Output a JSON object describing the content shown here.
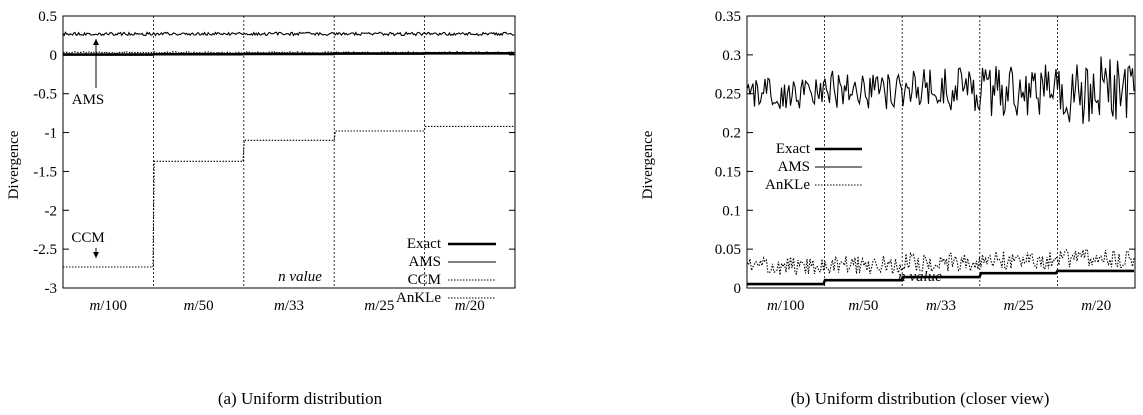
{
  "chart_data": [
    {
      "type": "line",
      "caption": "(a) Uniform distribution",
      "xlabel": "n value",
      "ylabel": "Divergence",
      "categories": [
        "m/100",
        "m/50",
        "m/33",
        "m/25",
        "m/20"
      ],
      "yticks": [
        "0.5",
        "0",
        "-0.5",
        "-1",
        "-1.5",
        "-2",
        "-2.5",
        "-3"
      ],
      "ylim": [
        -3,
        0.5
      ],
      "grid": "vertical dotted separators between categories",
      "legend_position": "bottom-right",
      "annotations": [
        "AMS",
        "CCM"
      ],
      "series": [
        {
          "name": "Exact",
          "style": "thick",
          "values": [
            0.003,
            0.008,
            0.012,
            0.016,
            0.02
          ]
        },
        {
          "name": "AMS",
          "style": "solid",
          "values": [
            0.27,
            0.27,
            0.27,
            0.27,
            0.27
          ],
          "noise": 0.02
        },
        {
          "name": "CCM",
          "style": "dotted",
          "values": [
            -2.73,
            -1.37,
            -1.1,
            -0.98,
            -0.92
          ]
        },
        {
          "name": "AnKLe",
          "style": "dotted",
          "values": [
            0.03,
            0.03,
            0.03,
            0.03,
            0.03
          ],
          "noise": 0.01
        }
      ]
    },
    {
      "type": "line",
      "caption": "(b) Uniform distribution (closer view)",
      "xlabel": "n value",
      "ylabel": "Divergence",
      "categories": [
        "m/100",
        "m/50",
        "m/33",
        "m/25",
        "m/20"
      ],
      "yticks": [
        "0.35",
        "0.3",
        "0.25",
        "0.2",
        "0.15",
        "0.1",
        "0.05",
        "0"
      ],
      "ylim": [
        0,
        0.35
      ],
      "grid": "vertical dotted separators between categories",
      "legend_position": "top-left",
      "series": [
        {
          "name": "Exact",
          "style": "thick",
          "values": [
            0.005,
            0.01,
            0.014,
            0.019,
            0.022
          ]
        },
        {
          "name": "AMS",
          "style": "solid",
          "values": [
            0.25,
            0.255,
            0.255,
            0.255,
            0.255
          ],
          "noise": [
            0.02,
            0.025,
            0.03,
            0.035,
            0.045
          ]
        },
        {
          "name": "AnKLe",
          "style": "dotted",
          "values": [
            0.028,
            0.03,
            0.033,
            0.036,
            0.038
          ],
          "noise": 0.012
        }
      ]
    }
  ]
}
